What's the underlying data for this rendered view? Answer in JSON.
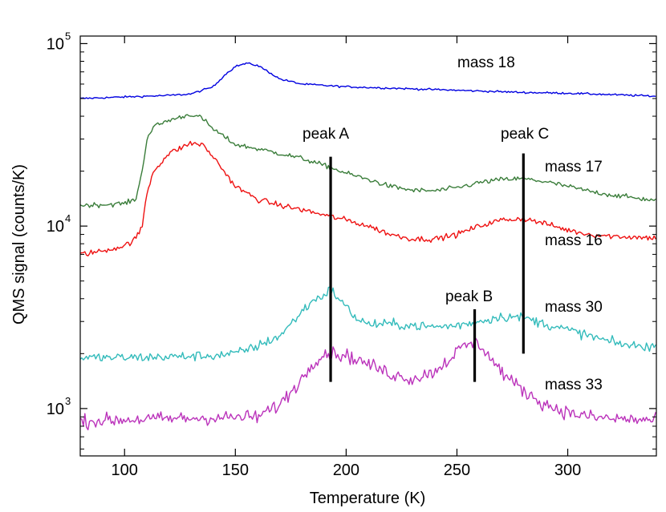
{
  "chart_data": {
    "type": "line",
    "xlabel": "Temperature (K)",
    "ylabel": "QMS signal (counts/K)",
    "xlim": [
      80,
      340
    ],
    "ylim": [
      550,
      110000
    ],
    "yscale": "log",
    "xticks": [
      100,
      150,
      200,
      250,
      300
    ],
    "xtick_labels": [
      "100",
      "150",
      "200",
      "250",
      "300"
    ],
    "yticks": [
      {
        "value": 1000,
        "base": "10",
        "exponent": "3"
      },
      {
        "value": 10000,
        "base": "10",
        "exponent": "4"
      },
      {
        "value": 100000,
        "base": "10",
        "exponent": "5"
      }
    ],
    "grid": false,
    "series": [
      {
        "name": "mass 18",
        "label": "mass 18",
        "color": "#0000e0",
        "noise": 0.012,
        "x": [
          80,
          90,
          100,
          110,
          120,
          130,
          140,
          145,
          150,
          155,
          160,
          165,
          170,
          180,
          190,
          200,
          220,
          240,
          260,
          280,
          300,
          320,
          340
        ],
        "values": [
          50000,
          50500,
          51000,
          51500,
          52000,
          53000,
          58000,
          67000,
          75000,
          78000,
          76000,
          70000,
          64000,
          60000,
          59000,
          58000,
          57000,
          56000,
          55000,
          54000,
          53500,
          52500,
          51500
        ]
      },
      {
        "name": "mass 17",
        "label": "mass 17",
        "color": "#3a7d3a",
        "noise": 0.03,
        "x": [
          80,
          90,
          100,
          105,
          108,
          110,
          113,
          120,
          130,
          135,
          140,
          150,
          160,
          170,
          180,
          190,
          200,
          210,
          220,
          230,
          240,
          250,
          260,
          270,
          280,
          290,
          300,
          310,
          320,
          340
        ],
        "values": [
          13000,
          13100,
          13300,
          14000,
          20000,
          30000,
          35000,
          38000,
          41000,
          39000,
          34000,
          28000,
          26500,
          25000,
          23500,
          21500,
          19500,
          18000,
          16500,
          15700,
          15600,
          16200,
          17300,
          18000,
          18200,
          17500,
          16500,
          15500,
          14800,
          13800
        ]
      },
      {
        "name": "mass 16",
        "label": "mass 16",
        "color": "#ee1111",
        "noise": 0.035,
        "x": [
          80,
          90,
          100,
          105,
          108,
          110,
          113,
          120,
          130,
          135,
          140,
          150,
          160,
          170,
          180,
          190,
          200,
          210,
          220,
          230,
          240,
          250,
          260,
          270,
          280,
          290,
          300,
          310,
          320,
          340
        ],
        "values": [
          7000,
          7300,
          7800,
          8500,
          10000,
          15000,
          20000,
          25000,
          28500,
          28000,
          24000,
          16500,
          14000,
          13000,
          12300,
          11500,
          10800,
          10000,
          9000,
          8500,
          8500,
          9000,
          10000,
          10800,
          11000,
          10300,
          9500,
          9000,
          8800,
          8600
        ]
      },
      {
        "name": "mass 30",
        "label": "mass 30",
        "color": "#33bbbb",
        "noise": 0.06,
        "x": [
          80,
          90,
          100,
          120,
          140,
          150,
          160,
          170,
          175,
          180,
          185,
          190,
          193,
          196,
          200,
          205,
          210,
          220,
          230,
          240,
          250,
          260,
          270,
          280,
          290,
          300,
          310,
          320,
          330,
          340
        ],
        "values": [
          1900,
          1900,
          1900,
          1920,
          1950,
          2000,
          2200,
          2500,
          2900,
          3400,
          3900,
          4200,
          4500,
          4100,
          3600,
          3100,
          2900,
          2900,
          2850,
          2800,
          2850,
          3000,
          3200,
          3150,
          2900,
          2700,
          2500,
          2300,
          2200,
          2200
        ]
      },
      {
        "name": "mass 33",
        "label": "mass 33",
        "color": "#bb33bb",
        "noise": 0.085,
        "x": [
          80,
          90,
          100,
          120,
          140,
          160,
          170,
          180,
          185,
          190,
          195,
          200,
          210,
          220,
          230,
          240,
          245,
          250,
          255,
          258,
          262,
          265,
          270,
          275,
          280,
          290,
          300,
          310,
          320,
          340
        ],
        "values": [
          850,
          860,
          870,
          880,
          890,
          900,
          1050,
          1450,
          1800,
          2000,
          2000,
          1950,
          1750,
          1550,
          1450,
          1600,
          1800,
          2050,
          2250,
          2300,
          2150,
          1900,
          1600,
          1400,
          1250,
          1050,
          950,
          900,
          880,
          860
        ]
      }
    ],
    "annotations": [
      {
        "label": "peak A",
        "x": 193,
        "y_from": 1400,
        "y_to": 24000
      },
      {
        "label": "peak B",
        "x": 258,
        "y_from": 1400,
        "y_to": 3500
      },
      {
        "label": "peak C",
        "x": 280,
        "y_from": 2000,
        "y_to": 25000
      }
    ]
  }
}
